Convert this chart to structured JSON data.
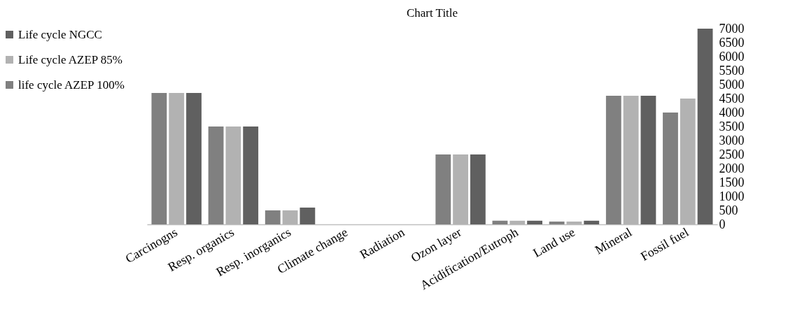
{
  "chart_data": {
    "type": "bar",
    "title": "Chart Title",
    "categories": [
      "Carcinogns",
      "Resp. organics",
      "Resp. inorganics",
      "Climate change",
      "Radiation",
      "Ozon layer",
      "Acidification/Eutroph",
      "Land use",
      "Mineral",
      "Fossil fuel"
    ],
    "series": [
      {
        "name": "life cycle AZEP 100%",
        "color": "#808080",
        "values": [
          4700,
          3500,
          500,
          0,
          0,
          2500,
          130,
          100,
          4600,
          4000
        ]
      },
      {
        "name": "Life cycle AZEP 85%",
        "color": "#b2b2b2",
        "values": [
          4700,
          3500,
          500,
          0,
          0,
          2500,
          130,
          100,
          4600,
          4500
        ]
      },
      {
        "name": "Life cycle NGCC",
        "color": "#606060",
        "values": [
          4700,
          3500,
          600,
          0,
          0,
          2500,
          130,
          130,
          4600,
          7000
        ]
      }
    ],
    "ylim": [
      0,
      7000
    ],
    "yticks": [
      0,
      500,
      1000,
      1500,
      2000,
      2500,
      3000,
      3500,
      4000,
      4500,
      5000,
      5500,
      6000,
      6500,
      7000
    ],
    "grid": false,
    "legend": "left"
  }
}
